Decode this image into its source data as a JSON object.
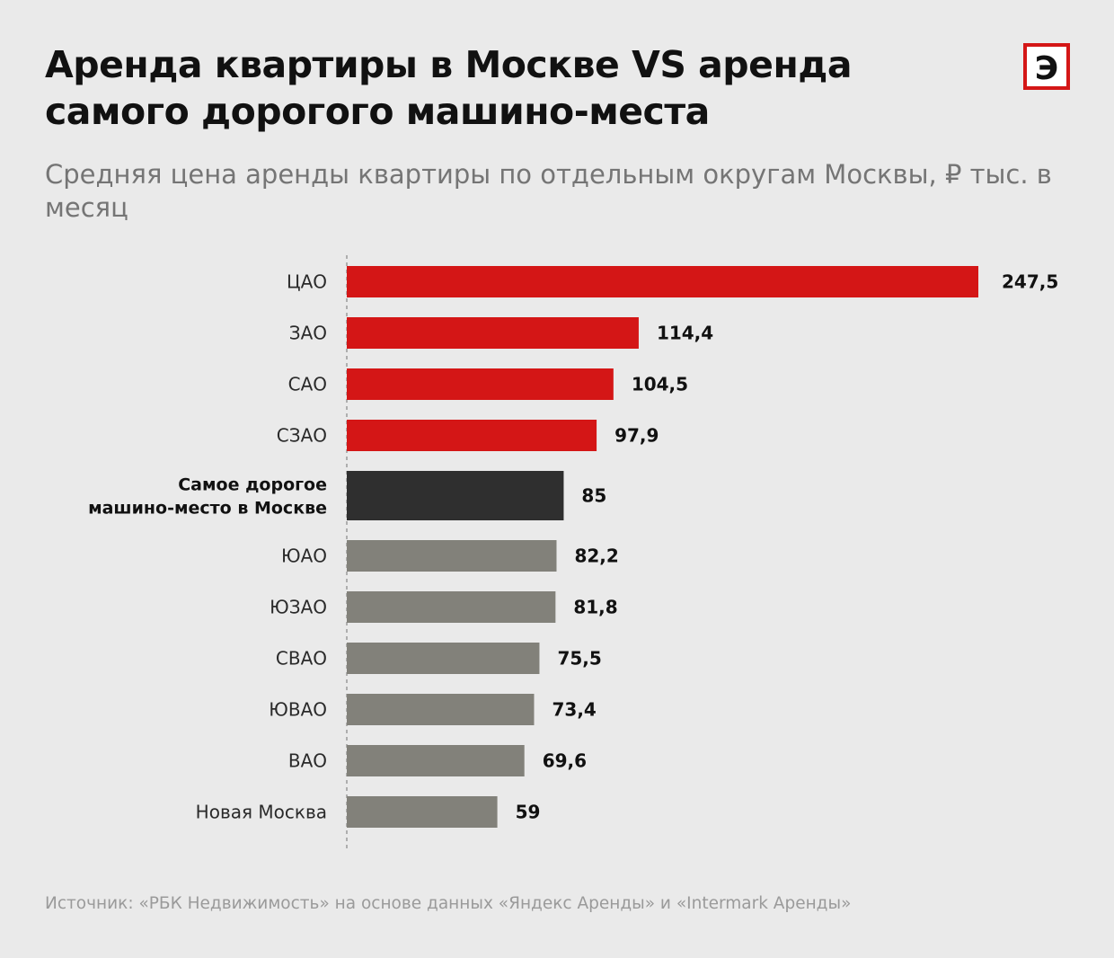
{
  "header": {
    "title": "Аренда квартиры в Москве VS аренда самого дорогого машино-места",
    "subtitle": "Средняя цена аренды квартиры по отдельным округам Москвы, ₽ тыс. в месяц",
    "logo_letter": "Э"
  },
  "footer": {
    "source": "Источник: «РБК Недвижимость» на основе данных «Яндекс Аренды» и «Intermark Аренды»"
  },
  "colors": {
    "background": "#eaeaea",
    "red": "#d41616",
    "dark": "#2f2f2f",
    "gray": "#82817a",
    "axis": "#9a9a9a"
  },
  "chart_data": {
    "type": "bar",
    "orientation": "horizontal",
    "categories": [
      "ЦАО",
      "ЗАО",
      "САО",
      "СЗАО",
      "Самое дорогое машино-место в Москве",
      "ЮАО",
      "ЮЗАО",
      "СВАО",
      "ЮВАО",
      "ВАО",
      "Новая Москва"
    ],
    "category_lines": [
      [
        "ЦАО"
      ],
      [
        "ЗАО"
      ],
      [
        "САО"
      ],
      [
        "СЗАО"
      ],
      [
        "Самое дорогое",
        "машино-место в Москве"
      ],
      [
        "ЮАО"
      ],
      [
        "ЮЗАО"
      ],
      [
        "СВАО"
      ],
      [
        "ЮВАО"
      ],
      [
        "ВАО"
      ],
      [
        "Новая Москва"
      ]
    ],
    "values": [
      247.5,
      114.4,
      104.5,
      97.9,
      85,
      82.2,
      81.8,
      75.5,
      73.4,
      69.6,
      59
    ],
    "value_labels": [
      "247,5",
      "114,4",
      "104,5",
      "97,9",
      "85",
      "82,2",
      "81,8",
      "75,5",
      "73,4",
      "69,6",
      "59"
    ],
    "bar_colors": [
      "red",
      "red",
      "red",
      "red",
      "dark",
      "gray",
      "gray",
      "gray",
      "gray",
      "gray",
      "gray"
    ],
    "highlight_index": 4,
    "xlim": [
      0,
      247.5
    ],
    "title": "",
    "xlabel": "",
    "ylabel": "",
    "grid": false,
    "axis_style": "dashed vertical baseline"
  }
}
